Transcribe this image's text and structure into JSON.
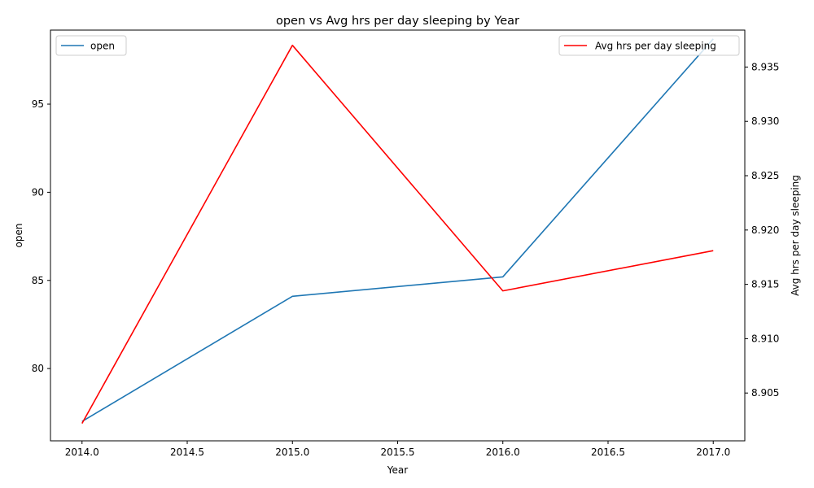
{
  "chart_data": {
    "type": "line",
    "title": "open vs Avg hrs per day sleeping by Year",
    "xlabel": "Year",
    "ylabel_left": "open",
    "ylabel_right": "Avg hrs per day sleeping",
    "x": [
      2014,
      2015,
      2016,
      2017
    ],
    "xlim": [
      2013.85,
      2017.15
    ],
    "x_ticks": [
      "2014.0",
      "2014.5",
      "2015.0",
      "2015.5",
      "2016.0",
      "2016.5",
      "2017.0"
    ],
    "x_tick_values": [
      2014.0,
      2014.5,
      2015.0,
      2015.5,
      2016.0,
      2016.5,
      2017.0
    ],
    "ylim_left": [
      75.9,
      99.2
    ],
    "y_ticks_left": [
      "80",
      "85",
      "90",
      "95"
    ],
    "y_tick_values_left": [
      80,
      85,
      90,
      95
    ],
    "ylim_right": [
      8.9006,
      8.9384
    ],
    "y_ticks_right": [
      "8.905",
      "8.910",
      "8.915",
      "8.920",
      "8.925",
      "8.930",
      "8.935"
    ],
    "y_tick_values_right": [
      8.905,
      8.91,
      8.915,
      8.92,
      8.925,
      8.93,
      8.935
    ],
    "grid": false,
    "series": [
      {
        "name": "open",
        "axis": "left",
        "color": "#1f77b4",
        "values": [
          77.0,
          84.1,
          85.2,
          98.7
        ]
      },
      {
        "name": "Avg hrs per day sleeping",
        "axis": "right",
        "color": "#ff0000",
        "values": [
          8.9022,
          8.937,
          8.9144,
          8.9181
        ]
      }
    ],
    "legends": [
      {
        "series": "open",
        "placement": "top-left"
      },
      {
        "series": "Avg hrs per day sleeping",
        "placement": "top-right"
      }
    ]
  }
}
